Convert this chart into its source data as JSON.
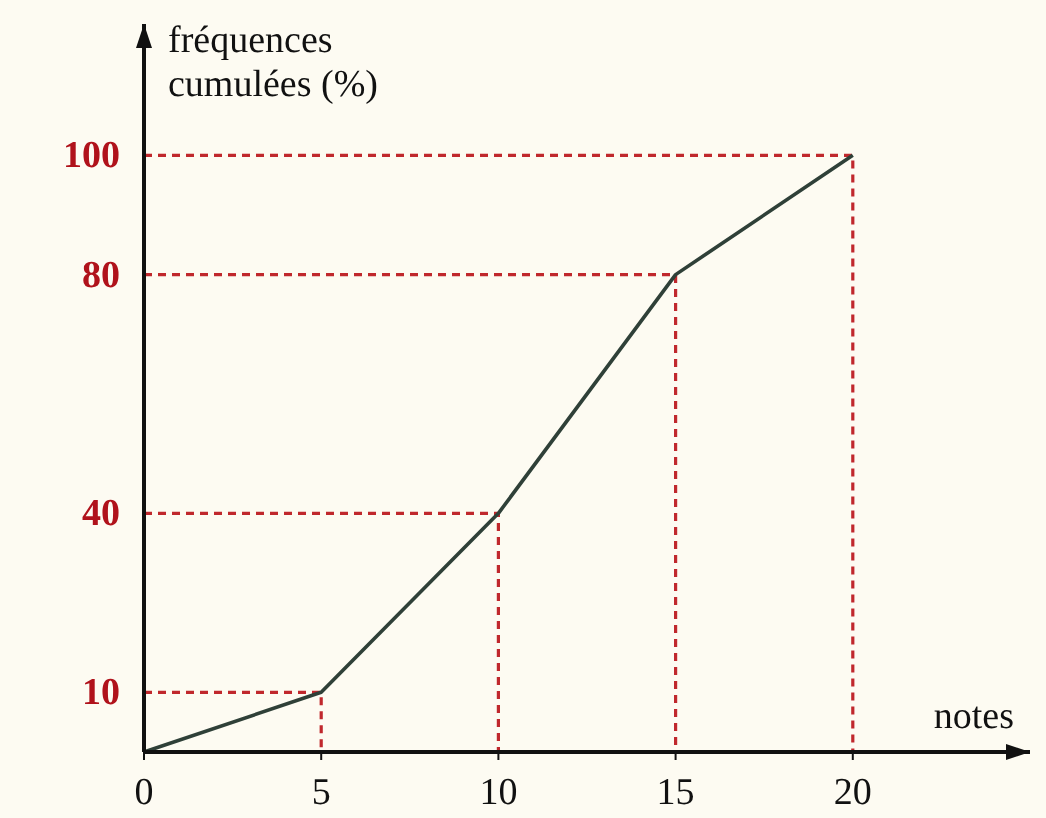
{
  "chart_data": {
    "type": "line",
    "xlabel": "notes",
    "ylabel": "fréquences cumulées (%)",
    "x": [
      0,
      5,
      10,
      15,
      20
    ],
    "series": [
      {
        "color": "#c0282d",
        "line_style": "dashed",
        "x": [
          0,
          5,
          5
        ],
        "values": [
          10,
          10,
          0
        ]
      },
      {
        "color": "#c0282d",
        "line_style": "dashed",
        "x": [
          0,
          10,
          10
        ],
        "values": [
          40,
          40,
          0
        ]
      },
      {
        "color": "#c0282d",
        "line_style": "dashed",
        "x": [
          0,
          15,
          15
        ],
        "values": [
          80,
          80,
          0
        ]
      },
      {
        "color": "#c0282d",
        "line_style": "dashed",
        "x": [
          0,
          20,
          20
        ],
        "values": [
          100,
          100,
          0
        ]
      },
      {
        "color": "#2f4038",
        "values": [
          0,
          10,
          40,
          80,
          100
        ]
      }
    ],
    "xlim": [
      0,
      25
    ],
    "ylim": [
      0,
      122
    ],
    "xticks": [
      0,
      5,
      10,
      15,
      20
    ],
    "yticks": [
      10,
      40,
      80,
      100
    ],
    "marker": "none",
    "line_style": "solid"
  }
}
